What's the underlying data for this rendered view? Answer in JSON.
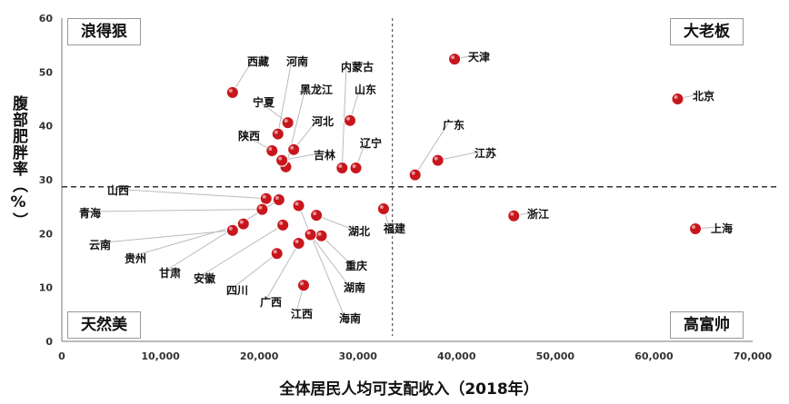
{
  "chart_data": {
    "type": "scatter",
    "xlabel": "全体居民人均可支配收入（2018年）",
    "ylabel": "腹部肥胖率（%）",
    "xlim": [
      0,
      70000
    ],
    "ylim": [
      0,
      60
    ],
    "xticks": [
      "0",
      "10,000",
      "20,000",
      "30,000",
      "40,000",
      "50,000",
      "60,000",
      "70,000"
    ],
    "yticks": [
      "0",
      "10",
      "20",
      "30",
      "40",
      "50",
      "60"
    ],
    "quadrant_labels": {
      "top_left": "浪得狠",
      "top_right": "大老板",
      "bottom_left": "天然美",
      "bottom_right": "高富帅"
    },
    "reference_lines": {
      "x": 33500,
      "y": 28.7
    },
    "colors": {
      "point": "#c8161d",
      "reference_line": "#333333"
    },
    "points": [
      {
        "name": "天津",
        "x": 39800,
        "y": 52.4
      },
      {
        "name": "北京",
        "x": 62400,
        "y": 45.0
      },
      {
        "name": "西藏",
        "x": 17300,
        "y": 46.2
      },
      {
        "name": "河南",
        "x": 21900,
        "y": 38.5
      },
      {
        "name": "内蒙古",
        "x": 28400,
        "y": 32.2
      },
      {
        "name": "宁夏",
        "x": 22900,
        "y": 40.6
      },
      {
        "name": "黑龙江",
        "x": 22700,
        "y": 32.4
      },
      {
        "name": "山东",
        "x": 29200,
        "y": 41.0
      },
      {
        "name": "河北",
        "x": 23500,
        "y": 35.6
      },
      {
        "name": "陕西",
        "x": 21300,
        "y": 35.4
      },
      {
        "name": "辽宁",
        "x": 29800,
        "y": 32.2
      },
      {
        "name": "吉林",
        "x": 22300,
        "y": 33.6
      },
      {
        "name": "广东",
        "x": 35800,
        "y": 30.9
      },
      {
        "name": "江苏",
        "x": 38100,
        "y": 33.6
      },
      {
        "name": "浙江",
        "x": 45800,
        "y": 23.3
      },
      {
        "name": "上海",
        "x": 64200,
        "y": 20.9
      },
      {
        "name": "山西",
        "x": 20700,
        "y": 26.5
      },
      {
        "name": "青海",
        "x": 20300,
        "y": 24.5
      },
      {
        "name": "云南",
        "x": 17300,
        "y": 20.6
      },
      {
        "name": "贵州",
        "x": 18400,
        "y": 21.8
      },
      {
        "name": "甘肃",
        "x": 22000,
        "y": 26.3
      },
      {
        "name": "安徽",
        "x": 22400,
        "y": 21.6
      },
      {
        "name": "四川",
        "x": 21800,
        "y": 16.3
      },
      {
        "name": "广西",
        "x": 24000,
        "y": 18.2
      },
      {
        "name": "江西",
        "x": 24500,
        "y": 10.4
      },
      {
        "name": "湖北",
        "x": 25800,
        "y": 23.4
      },
      {
        "name": "福建",
        "x": 32600,
        "y": 24.6
      },
      {
        "name": "重庆",
        "x": 26300,
        "y": 19.6
      },
      {
        "name": "湖南",
        "x": 25200,
        "y": 19.8
      },
      {
        "name": "海南",
        "x": 24000,
        "y": 25.2
      }
    ]
  }
}
